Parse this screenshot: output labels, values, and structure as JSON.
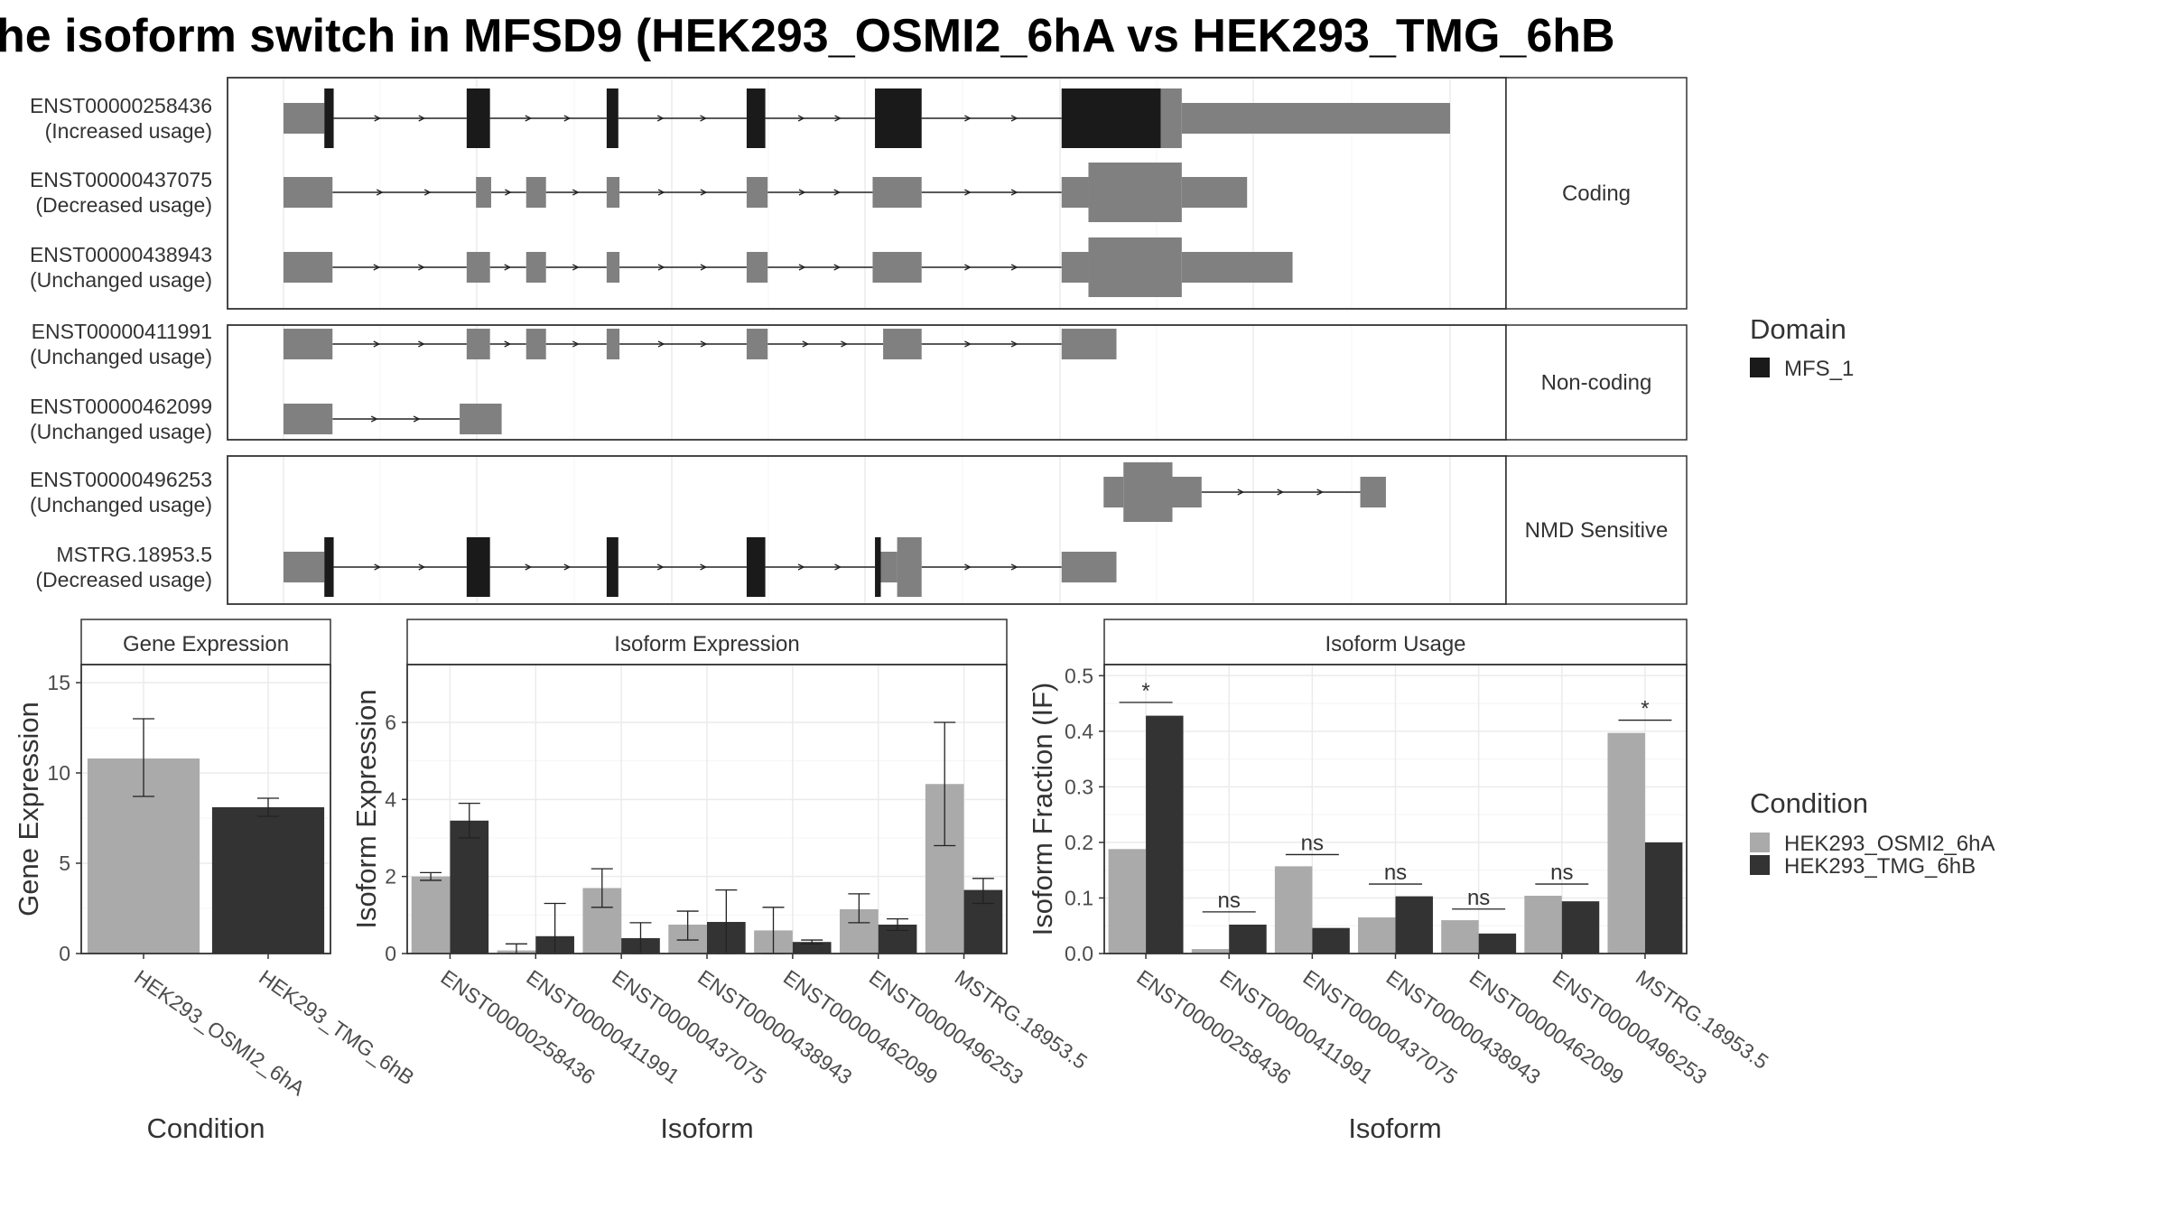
{
  "title": "he isoform switch in MFSD9 (HEK293_OSMI2_6hA vs HEK293_TMG_6hB",
  "colors": {
    "domain": "#1a1a1a",
    "exon": "#808080",
    "cond_a": "#aaaaaa",
    "cond_b": "#333333",
    "axis": "#333333"
  },
  "structure": {
    "x_domain": [
      0,
      1000
    ],
    "groups": [
      {
        "label": "Coding",
        "transcripts": [
          {
            "id": "ENST00000258436",
            "status": "(Increased usage)",
            "exons": [
              [
                0,
                35,
                "u"
              ],
              [
                35,
                43,
                "d"
              ],
              [
                157,
                177,
                "d"
              ],
              [
                277,
                287,
                "d"
              ],
              [
                397,
                413,
                "d"
              ],
              [
                507,
                547,
                "d"
              ],
              [
                667,
                752,
                "d"
              ],
              [
                752,
                770,
                "c"
              ],
              [
                770,
                1000,
                "u"
              ]
            ],
            "introns": [
              [
                43,
                157
              ],
              [
                177,
                277
              ],
              [
                287,
                397
              ],
              [
                413,
                507
              ],
              [
                547,
                667
              ]
            ]
          },
          {
            "id": "ENST00000437075",
            "status": "(Decreased usage)",
            "exons": [
              [
                0,
                42,
                "u"
              ],
              [
                165,
                178,
                "u"
              ],
              [
                208,
                225,
                "u"
              ],
              [
                277,
                288,
                "u"
              ],
              [
                397,
                415,
                "u"
              ],
              [
                505,
                547,
                "u"
              ],
              [
                667,
                690,
                "u"
              ],
              [
                690,
                770,
                "c"
              ],
              [
                770,
                826,
                "u"
              ]
            ],
            "introns": [
              [
                42,
                165
              ],
              [
                178,
                208
              ],
              [
                225,
                277
              ],
              [
                288,
                397
              ],
              [
                415,
                505
              ],
              [
                547,
                667
              ]
            ]
          },
          {
            "id": "ENST00000438943",
            "status": "(Unchanged usage)",
            "exons": [
              [
                0,
                42,
                "u"
              ],
              [
                157,
                177,
                "u"
              ],
              [
                208,
                225,
                "u"
              ],
              [
                277,
                288,
                "u"
              ],
              [
                397,
                415,
                "u"
              ],
              [
                505,
                547,
                "u"
              ],
              [
                667,
                690,
                "u"
              ],
              [
                690,
                770,
                "c"
              ],
              [
                770,
                865,
                "u"
              ]
            ],
            "introns": [
              [
                42,
                157
              ],
              [
                177,
                208
              ],
              [
                225,
                277
              ],
              [
                288,
                397
              ],
              [
                415,
                505
              ],
              [
                547,
                667
              ]
            ]
          }
        ]
      },
      {
        "label": "Non-coding",
        "transcripts": [
          {
            "id": "ENST00000411991",
            "status": "(Unchanged usage)",
            "exons": [
              [
                0,
                42,
                "u"
              ],
              [
                157,
                177,
                "u"
              ],
              [
                208,
                225,
                "u"
              ],
              [
                277,
                288,
                "u"
              ],
              [
                397,
                415,
                "u"
              ],
              [
                514,
                547,
                "u"
              ],
              [
                667,
                714,
                "u"
              ]
            ],
            "introns": [
              [
                42,
                157
              ],
              [
                177,
                208
              ],
              [
                225,
                277
              ],
              [
                288,
                397
              ],
              [
                415,
                514
              ],
              [
                547,
                667
              ]
            ]
          },
          {
            "id": "ENST00000462099",
            "status": "(Unchanged usage)",
            "exons": [
              [
                0,
                42,
                "u"
              ],
              [
                151,
                187,
                "u"
              ]
            ],
            "introns": [
              [
                42,
                151
              ]
            ]
          }
        ]
      },
      {
        "label": "NMD Sensitive",
        "transcripts": [
          {
            "id": "ENST00000496253",
            "status": "(Unchanged usage)",
            "exons": [
              [
                703,
                720,
                "u"
              ],
              [
                720,
                762,
                "c"
              ],
              [
                762,
                787,
                "u"
              ],
              [
                923,
                945,
                "u"
              ]
            ],
            "introns": [
              [
                787,
                923
              ]
            ]
          },
          {
            "id": "MSTRG.18953.5",
            "status": "(Decreased usage)",
            "exons": [
              [
                0,
                35,
                "u"
              ],
              [
                35,
                43,
                "d"
              ],
              [
                157,
                177,
                "d"
              ],
              [
                277,
                287,
                "d"
              ],
              [
                397,
                413,
                "d"
              ],
              [
                507,
                512,
                "d"
              ],
              [
                512,
                526,
                "u"
              ],
              [
                526,
                547,
                "c"
              ],
              [
                667,
                714,
                "u"
              ]
            ],
            "introns": [
              [
                43,
                157
              ],
              [
                177,
                277
              ],
              [
                287,
                397
              ],
              [
                413,
                507
              ],
              [
                547,
                667
              ]
            ]
          }
        ]
      }
    ]
  },
  "legend_domain": {
    "title": "Domain",
    "items": [
      "MFS_1"
    ]
  },
  "legend_condition": {
    "title": "Condition",
    "items": [
      "HEK293_OSMI2_6hA",
      "HEK293_TMG_6hB"
    ]
  },
  "chart_data": [
    {
      "type": "bar",
      "panel_title": "Gene Expression",
      "xlabel": "Condition",
      "ylabel": "Gene Expression",
      "ylim": [
        0,
        16
      ],
      "yticks": [
        0,
        5,
        10,
        15
      ],
      "categories": [
        "HEK293_OSMI2_6hA",
        "HEK293_TMG_6hB"
      ],
      "series": [
        {
          "name": "HEK293_OSMI2_6hA",
          "values": [
            10.8,
            null
          ],
          "err_low": [
            8.7,
            null
          ],
          "err_high": [
            13.0,
            null
          ]
        },
        {
          "name": "HEK293_TMG_6hB",
          "values": [
            null,
            8.1
          ],
          "err_low": [
            null,
            7.6
          ],
          "err_high": [
            null,
            8.6
          ]
        }
      ]
    },
    {
      "type": "bar",
      "panel_title": "Isoform Expression",
      "xlabel": "Isoform",
      "ylabel": "Isoform Expression",
      "ylim": [
        0,
        7.5
      ],
      "yticks": [
        0,
        2,
        4,
        6
      ],
      "categories": [
        "ENST00000258436",
        "ENST00000411991",
        "ENST00000437075",
        "ENST00000438943",
        "ENST00000462099",
        "ENST00000496253",
        "MSTRG.18953.5"
      ],
      "series": [
        {
          "name": "HEK293_OSMI2_6hA",
          "values": [
            2.0,
            0.08,
            1.7,
            0.75,
            0.6,
            1.15,
            4.4
          ],
          "err_low": [
            1.9,
            0.0,
            1.2,
            0.35,
            0.0,
            0.8,
            2.8
          ],
          "err_high": [
            2.1,
            0.25,
            2.2,
            1.1,
            1.2,
            1.55,
            6.0
          ]
        },
        {
          "name": "HEK293_TMG_6hB",
          "values": [
            3.45,
            0.45,
            0.4,
            0.82,
            0.3,
            0.75,
            1.65
          ],
          "err_low": [
            3.0,
            0.0,
            0.0,
            0.0,
            0.25,
            0.6,
            1.3
          ],
          "err_high": [
            3.9,
            1.3,
            0.8,
            1.65,
            0.35,
            0.9,
            1.95
          ]
        }
      ]
    },
    {
      "type": "bar",
      "panel_title": "Isoform Usage",
      "xlabel": "Isoform",
      "ylabel": "Isoform Fraction (IF)",
      "ylim": [
        0,
        0.52
      ],
      "yticks": [
        0.0,
        0.1,
        0.2,
        0.3,
        0.4,
        0.5
      ],
      "ytick_labels": [
        "0.0",
        "0.1",
        "0.2",
        "0.3",
        "0.4",
        "0.5"
      ],
      "categories": [
        "ENST00000258436",
        "ENST00000411991",
        "ENST00000437075",
        "ENST00000438943",
        "ENST00000462099",
        "ENST00000496253",
        "MSTRG.18953.5"
      ],
      "series": [
        {
          "name": "HEK293_OSMI2_6hA",
          "values": [
            0.188,
            0.008,
            0.157,
            0.065,
            0.06,
            0.104,
            0.397
          ]
        },
        {
          "name": "HEK293_TMG_6hB",
          "values": [
            0.428,
            0.052,
            0.046,
            0.103,
            0.036,
            0.094,
            0.2
          ]
        }
      ],
      "significance": [
        "*",
        "ns",
        "ns",
        "ns",
        "ns",
        "ns",
        "*"
      ],
      "sig_y": [
        0.452,
        0.075,
        0.178,
        0.125,
        0.08,
        0.125,
        0.42
      ]
    }
  ]
}
